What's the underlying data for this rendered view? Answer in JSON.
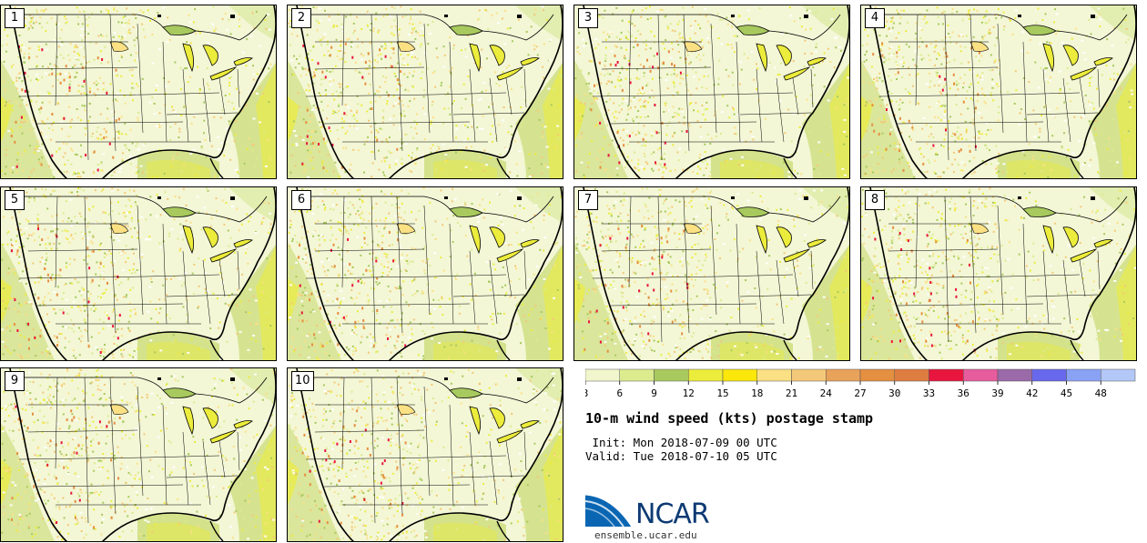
{
  "figure": {
    "title": "10-m wind speed (kts) postage stamp",
    "init_line": " Init: Mon 2018-07-09 00 UTC",
    "valid_line": "Valid: Tue 2018-07-10 05 UTC",
    "org_name": "NCAR",
    "website": "ensemble.ucar.edu"
  },
  "members": [
    {
      "label": "1"
    },
    {
      "label": "2"
    },
    {
      "label": "3"
    },
    {
      "label": "4"
    },
    {
      "label": "5"
    },
    {
      "label": "6"
    },
    {
      "label": "7"
    },
    {
      "label": "8"
    },
    {
      "label": "9"
    },
    {
      "label": "10"
    }
  ],
  "colorbar": {
    "units": "kts",
    "levels": [
      "3",
      "6",
      "9",
      "12",
      "15",
      "18",
      "21",
      "24",
      "27",
      "30",
      "33",
      "36",
      "39",
      "42",
      "45",
      "48"
    ],
    "colors": [
      "#f1f6cc",
      "#dbeb8e",
      "#a8c95e",
      "#ecec3c",
      "#fbe70a",
      "#fbe084",
      "#f3c878",
      "#e9a25a",
      "#e58f40",
      "#de7d40",
      "#e8163e",
      "#e65c9c",
      "#9b6aa8",
      "#6868ec",
      "#8aa2f4",
      "#b4c8f8"
    ]
  },
  "colors": {
    "land": "#f3f7d6",
    "water": "#eef3c6",
    "ocean_fill": "#c4d96b",
    "ocean_strong": "#ecec3c",
    "brand_blue": "#0d3a73"
  }
}
